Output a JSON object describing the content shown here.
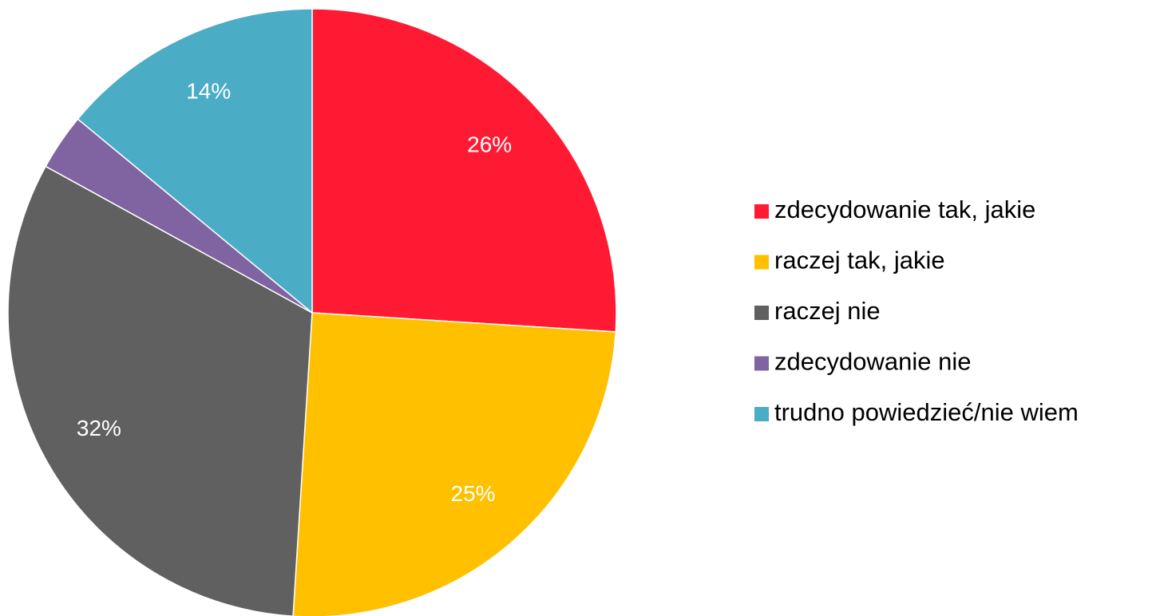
{
  "chart_data": {
    "type": "pie",
    "categories": [
      "zdecydowanie tak, jakie",
      "raczej tak, jakie",
      "raczej nie",
      "zdecydowanie nie",
      "trudno powiedzieć/nie wiem"
    ],
    "values": [
      26,
      25,
      32,
      3,
      14
    ],
    "value_labels": [
      "26%",
      "25%",
      "32%",
      null,
      "14%"
    ],
    "colors": [
      "#ff1a34",
      "#ffc000",
      "#606060",
      "#8064a2",
      "#4bacc6"
    ],
    "legend": "right"
  }
}
